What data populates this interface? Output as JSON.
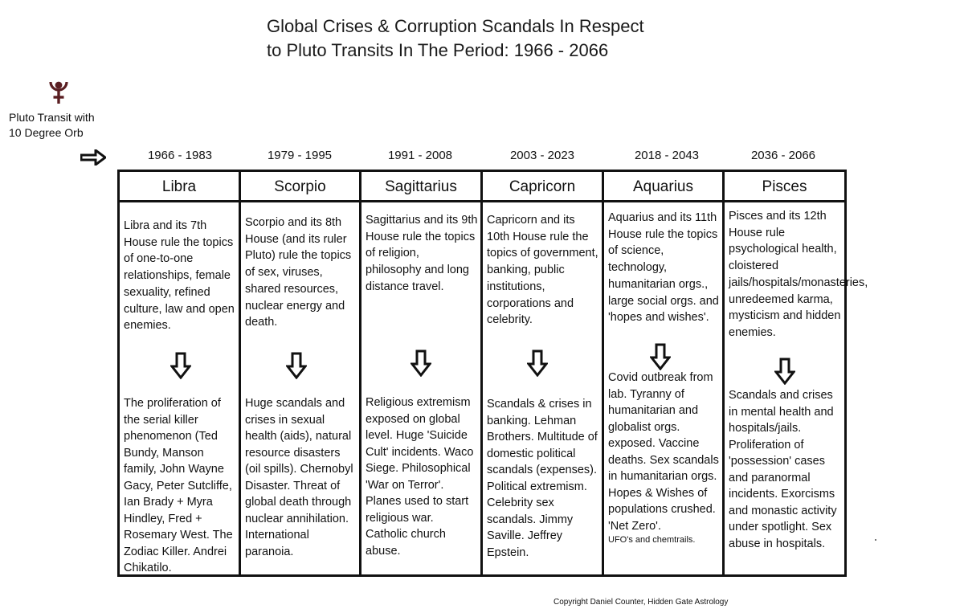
{
  "title": {
    "line1": "Global Crises & Corruption Scandals In Respect",
    "line2": "to Pluto Transits In The Period: 1966 - 2066"
  },
  "legend": {
    "icon": "pluto-glyph",
    "label_line1": "Pluto Transit with",
    "label_line2": "10 Degree Orb",
    "arrow_icon": "right-arrow"
  },
  "columns": [
    {
      "years": "1966 - 1983",
      "sign": "Libra",
      "description": "Libra and its 7th House rule the topics of one-to-one relationships, female sexuality, refined culture, law and open enemies.",
      "events": "The proliferation of the serial killer phenomenon (Ted Bundy, Manson family, John Wayne Gacy, Peter Sutcliffe, Ian Brady + Myra Hindley, Fred + Rosemary West. The Zodiac Killer. Andrei Chikatilo.",
      "note": ""
    },
    {
      "years": "1979 - 1995",
      "sign": "Scorpio",
      "description": "Scorpio and its 8th House (and its ruler Pluto) rule the topics of sex, viruses, shared resources, nuclear energy and death.",
      "events": "Huge scandals and crises in sexual health (aids), natural resource disasters (oil spills). Chernobyl Disaster. Threat of global death through nuclear annihilation. International paranoia.",
      "note": ""
    },
    {
      "years": "1991 - 2008",
      "sign": "Sagittarius",
      "description": "Sagittarius and its 9th House rule the topics of religion, philosophy and long distance travel.",
      "events": "Religious extremism exposed on global level. Huge 'Suicide Cult' incidents. Waco Siege. Philosophical 'War on Terror'. Planes used to start religious war. Catholic church abuse.",
      "note": ""
    },
    {
      "years": "2003 - 2023",
      "sign": "Capricorn",
      "description": "Capricorn and its 10th House rule the topics of government, banking, public institutions, corporations and celebrity.",
      "events": "Scandals & crises in banking. Lehman Brothers. Multitude of domestic political scandals (expenses). Political extremism. Celebrity sex scandals. Jimmy Saville. Jeffrey Epstein.",
      "note": ""
    },
    {
      "years": "2018 - 2043",
      "sign": "Aquarius",
      "description": "Aquarius and its 11th House rule the topics of science, technology, humanitarian orgs., large social orgs. and 'hopes and wishes'.",
      "events": "Covid outbreak from lab. Tyranny of humanitarian and globalist orgs. exposed. Vaccine deaths. Sex scandals in humanitarian orgs. Hopes & Wishes of populations crushed. 'Net Zero'.",
      "note": "UFO's and chemtrails."
    },
    {
      "years": "2036 - 2066",
      "sign": "Pisces",
      "description": "Pisces and its 12th House rule psychological health, cloistered jails/hospitals/monasteries, unredeemed karma, mysticism and hidden enemies.",
      "events": "Scandals and crises in mental health and hospitals/jails. Proliferation of 'possession' cases and paranormal incidents. Exorcisms and monastic activity under spotlight. Sex abuse in hospitals.",
      "note": ""
    }
  ],
  "copyright": "Copyright Daniel Counter, Hidden Gate Astrology",
  "colors": {
    "pluto_glyph": "#5a1e22",
    "lines": "#111111",
    "background": "#ffffff"
  }
}
